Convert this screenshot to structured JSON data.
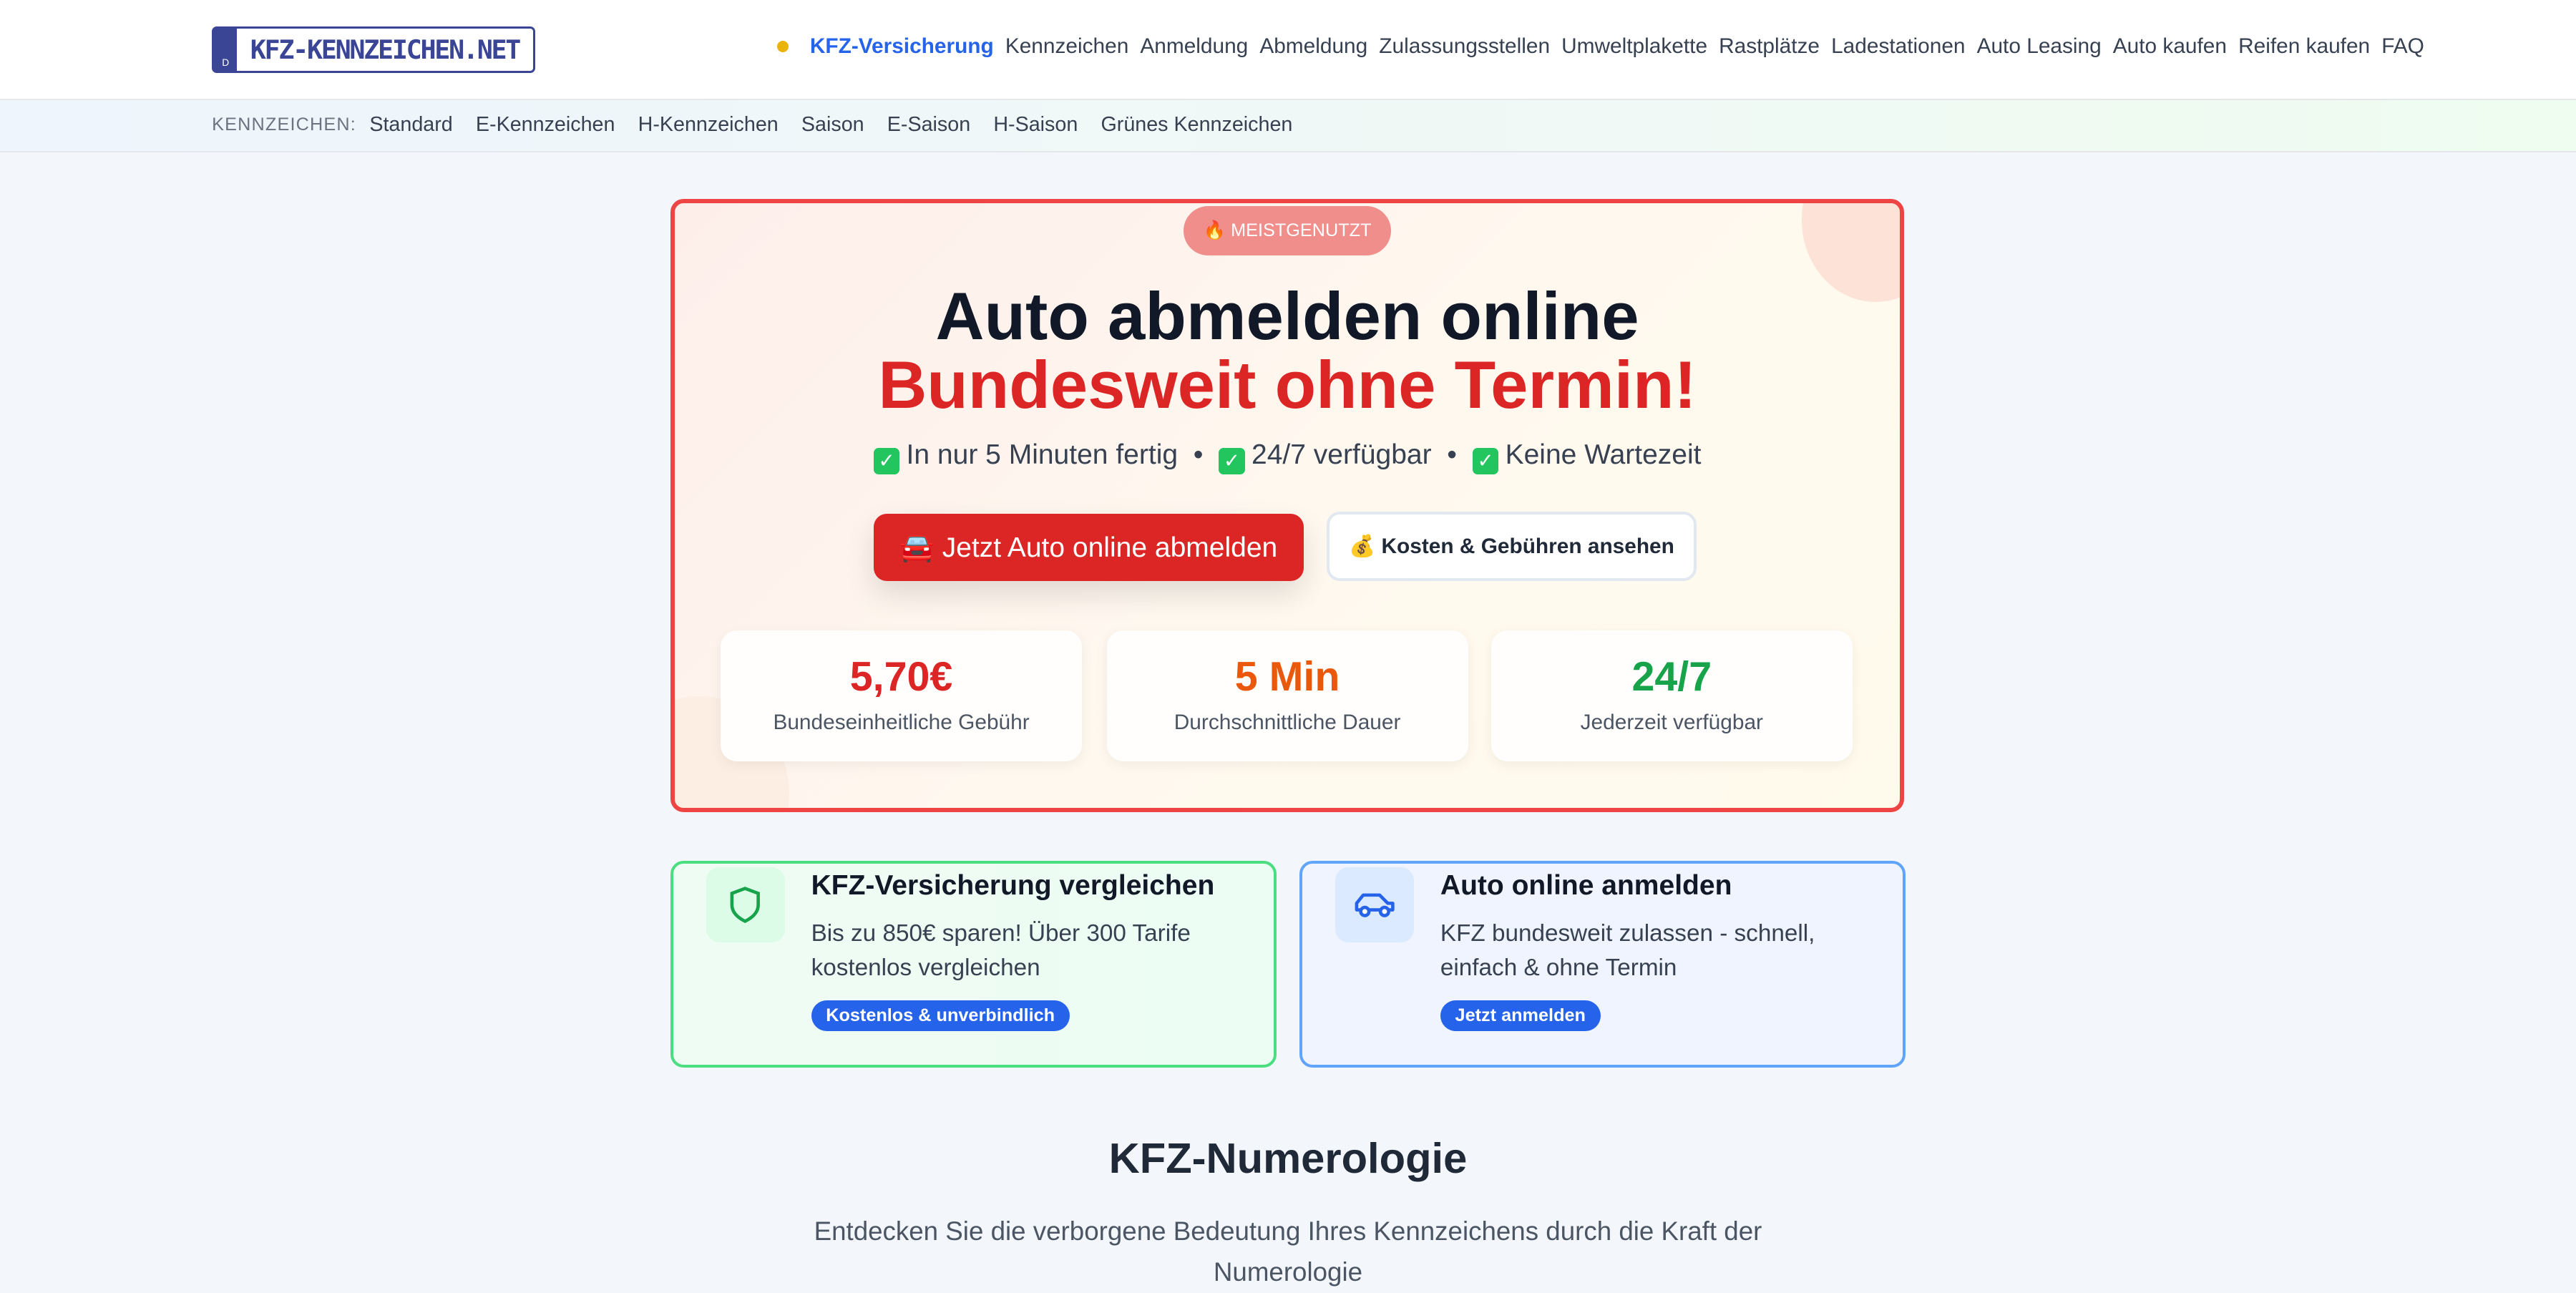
{
  "header": {
    "logo": "KFZ-KENNZEICHEN.NET",
    "logo_country": "D",
    "nav": [
      "KFZ-Versicherung",
      "Kennzeichen",
      "Anmeldung",
      "Abmeldung",
      "Zulassungsstellen",
      "Umweltplakette",
      "Rastplätze",
      "Ladestationen",
      "Auto Leasing",
      "Auto kaufen",
      "Reifen kaufen",
      "FAQ"
    ]
  },
  "subnav": {
    "label": "KENNZEICHEN:",
    "items": [
      "Standard",
      "E-Kennzeichen",
      "H-Kennzeichen",
      "Saison",
      "E-Saison",
      "H-Saison",
      "Grünes Kennzeichen"
    ]
  },
  "hero": {
    "badge": "🔥 MEISTGENUTZT",
    "title_line1": "Auto abmelden online",
    "title_line2": "Bundesweit ohne Termin!",
    "features": [
      "In nur 5 Minuten fertig",
      "24/7 verfügbar",
      "Keine Wartezeit"
    ],
    "primary_button": "🚘 Jetzt Auto online abmelden",
    "secondary_button": "💰 Kosten & Gebühren ansehen",
    "stats": [
      {
        "value": "5,70€",
        "label": "Bundeseinheitliche Gebühr",
        "color": "#dc2626"
      },
      {
        "value": "5 Min",
        "label": "Durchschnittliche Dauer",
        "color": "#ea580c"
      },
      {
        "value": "24/7",
        "label": "Jederzeit verfügbar",
        "color": "#16a34a"
      }
    ]
  },
  "cards": [
    {
      "title": "KFZ-Versicherung vergleichen",
      "desc": "Bis zu 850€ sparen! Über 300 Tarife kostenlos vergleichen",
      "pill": "Kostenlos & unverbindlich",
      "icon": "shield-icon"
    },
    {
      "title": "Auto online anmelden",
      "desc": "KFZ bundesweit zulassen - schnell, einfach & ohne Termin",
      "pill": "Jetzt anmelden",
      "icon": "car-icon"
    }
  ],
  "section": {
    "title": "KFZ-Numerologie",
    "desc": "Entdecken Sie die verborgene Bedeutung Ihres Kennzeichens durch die Kraft der Numerologie"
  }
}
